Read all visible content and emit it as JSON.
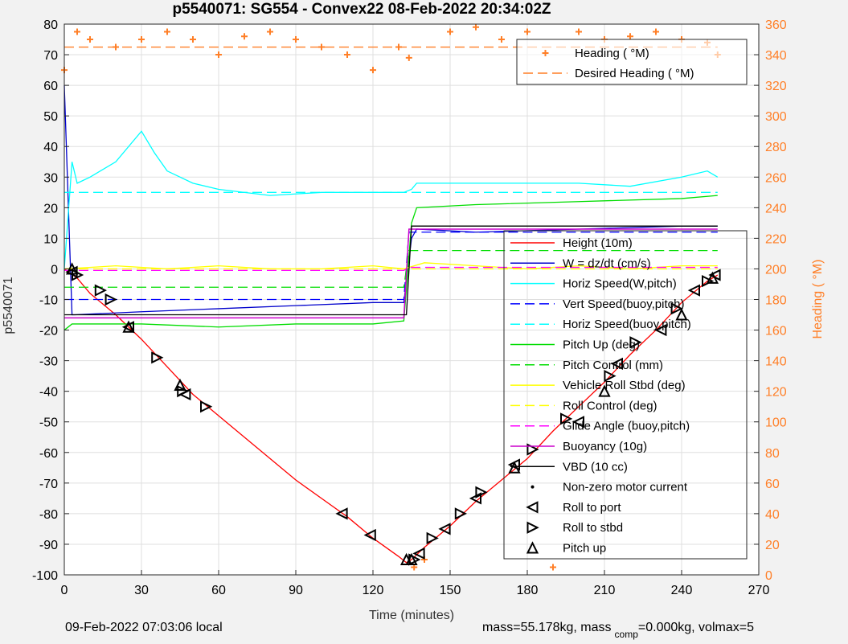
{
  "chart_data": {
    "type": "line",
    "title": "p5540071: SG554 - Convex22 08-Feb-2022 20:34:02Z",
    "xlabel": "Time (minutes)",
    "ylabel": "p5540071",
    "y2label": "Heading (  °M)",
    "xlim": [
      0,
      270
    ],
    "ylim": [
      -100,
      80
    ],
    "y2lim": [
      0,
      360
    ],
    "xticks": [
      0,
      30,
      60,
      90,
      120,
      150,
      180,
      210,
      240,
      270
    ],
    "yticks": [
      -100,
      -90,
      -80,
      -70,
      -60,
      -50,
      -40,
      -30,
      -20,
      -10,
      0,
      10,
      20,
      30,
      40,
      50,
      60,
      70,
      80
    ],
    "y2ticks": [
      0,
      20,
      40,
      60,
      80,
      100,
      120,
      140,
      160,
      180,
      200,
      220,
      240,
      260,
      280,
      300,
      320,
      340,
      360
    ],
    "grid": true,
    "legend_heading": {
      "placement": "top-right",
      "entries": [
        {
          "label": "Heading (  °M)",
          "color": "#ff7f27",
          "style": "plus"
        },
        {
          "label": "Desired Heading (    °M)",
          "color": "#ff7f27",
          "style": "dash"
        }
      ]
    },
    "legend_main": {
      "placement": "right",
      "entries": [
        {
          "label": "Height (10m)",
          "color": "#ff0000",
          "style": "solid"
        },
        {
          "label": "W = dz/dt (cm/s)",
          "color": "#0000cc",
          "style": "solid"
        },
        {
          "label": "Horiz Speed(W,pitch)",
          "color": "#00ffff",
          "style": "solid"
        },
        {
          "label": "Vert Speed(buoy,pitch)",
          "color": "#0000ff",
          "style": "dash"
        },
        {
          "label": "Horiz Speed(buoy,pitch)",
          "color": "#00ffff",
          "style": "dash"
        },
        {
          "label": "Pitch Up (deg)",
          "color": "#00dd00",
          "style": "solid"
        },
        {
          "label": "Pitch Control (mm)",
          "color": "#00dd00",
          "style": "dash"
        },
        {
          "label": "Vehicle Roll Stbd (deg)",
          "color": "#ffff00",
          "style": "solid"
        },
        {
          "label": "Roll Control (deg)",
          "color": "#ffff00",
          "style": "dash"
        },
        {
          "label": "Glide Angle (buoy,pitch)",
          "color": "#ff00ff",
          "style": "dash"
        },
        {
          "label": "Buoyancy (10g)",
          "color": "#cc00cc",
          "style": "solid"
        },
        {
          "label": "VBD (10 cc)",
          "color": "#000000",
          "style": "solid"
        },
        {
          "label": "Non-zero motor current",
          "color": "#000000",
          "style": "dot"
        },
        {
          "label": "Roll to port",
          "color": "#000000",
          "style": "tri-left"
        },
        {
          "label": "Roll to stbd",
          "color": "#000000",
          "style": "tri-right"
        },
        {
          "label": "Pitch up",
          "color": "#000000",
          "style": "tri-up"
        }
      ]
    },
    "series": [
      {
        "key": "height",
        "x": [
          0,
          5,
          10,
          20,
          30,
          40,
          50,
          60,
          70,
          80,
          90,
          100,
          110,
          120,
          130,
          133,
          135,
          140,
          150,
          160,
          170,
          180,
          190,
          200,
          210,
          220,
          230,
          240,
          250,
          254
        ],
        "y": [
          0,
          -3,
          -8,
          -15,
          -23,
          -32,
          -41,
          -48,
          -55,
          -62,
          -69,
          -75,
          -81,
          -88,
          -94,
          -96,
          -95,
          -91,
          -84,
          -76,
          -69,
          -62,
          -53,
          -45,
          -37,
          -28,
          -20,
          -11,
          -4,
          -2
        ]
      },
      {
        "key": "w",
        "x": [
          0,
          3,
          4,
          30,
          60,
          90,
          120,
          132,
          135,
          137,
          160,
          200,
          240,
          254
        ],
        "y": [
          60,
          -15,
          -15,
          -14,
          -13,
          -12,
          -11,
          -11,
          10,
          13,
          12,
          13,
          14,
          14
        ]
      },
      {
        "key": "horiz_w",
        "x": [
          0,
          3,
          5,
          10,
          20,
          30,
          35,
          40,
          50,
          60,
          80,
          100,
          120,
          132,
          135,
          137,
          160,
          200,
          220,
          240,
          250,
          254
        ],
        "y": [
          0,
          35,
          28,
          30,
          35,
          45,
          38,
          32,
          28,
          26,
          24,
          25,
          25,
          25,
          26,
          28,
          28,
          28,
          27,
          30,
          32,
          30
        ]
      },
      {
        "key": "vert_buoy",
        "x": [
          0,
          132,
          134,
          254
        ],
        "y": [
          -10,
          -10,
          12,
          12
        ]
      },
      {
        "key": "horiz_buoy",
        "x": [
          0,
          132,
          134,
          254
        ],
        "y": [
          25,
          25,
          25,
          25
        ]
      },
      {
        "key": "pitch_up",
        "x": [
          0,
          3,
          5,
          30,
          60,
          90,
          120,
          132,
          135,
          137,
          160,
          200,
          240,
          254
        ],
        "y": [
          -20,
          -18,
          -18,
          -18,
          -19,
          -18,
          -18,
          -17,
          15,
          20,
          21,
          22,
          23,
          24
        ]
      },
      {
        "key": "pitch_ctrl",
        "x": [
          0,
          132,
          134,
          254
        ],
        "y": [
          -6,
          -6,
          6,
          6
        ]
      },
      {
        "key": "roll",
        "x": [
          0,
          20,
          40,
          60,
          80,
          100,
          120,
          132,
          140,
          160,
          180,
          200,
          220,
          240,
          254
        ],
        "y": [
          0,
          1,
          0,
          1,
          0,
          0,
          1,
          0,
          2,
          1,
          0,
          1,
          0,
          1,
          1
        ]
      },
      {
        "key": "roll_ctrl",
        "x": [
          0,
          254
        ],
        "y": [
          0,
          0
        ]
      },
      {
        "key": "glide",
        "x": [
          0,
          132,
          134,
          254
        ],
        "y": [
          -0.5,
          -0.5,
          0.5,
          0.5
        ]
      },
      {
        "key": "buoy",
        "x": [
          0,
          3,
          132,
          134,
          254
        ],
        "y": [
          -16,
          -16,
          -16,
          13,
          13
        ]
      },
      {
        "key": "vbd",
        "x": [
          0,
          3,
          133,
          135,
          254
        ],
        "y": [
          -15,
          -15,
          -15,
          14,
          14
        ]
      },
      {
        "key": "heading",
        "x": [
          0,
          5,
          10,
          20,
          30,
          40,
          50,
          60,
          70,
          80,
          90,
          100,
          110,
          120,
          130,
          134,
          136,
          140,
          150,
          160,
          170,
          180,
          190,
          200,
          210,
          220,
          230,
          240,
          250,
          254
        ],
        "y": [
          330,
          355,
          350,
          345,
          350,
          355,
          350,
          340,
          352,
          355,
          350,
          345,
          340,
          330,
          345,
          338,
          5,
          10,
          355,
          358,
          350,
          355,
          5,
          355,
          350,
          352,
          355,
          350,
          348,
          340
        ]
      },
      {
        "key": "heading_desired",
        "x": [
          0,
          254
        ],
        "y": [
          345,
          345
        ]
      },
      {
        "key": "roll_port",
        "x": [
          3,
          25,
          47,
          108,
          119,
          138,
          148,
          160,
          175,
          200,
          215,
          232,
          245,
          253
        ],
        "y": [
          -1,
          -19,
          -41,
          -80,
          -87,
          -93,
          -85,
          -75,
          -64,
          -50,
          -31,
          -20,
          -7,
          -2
        ]
      },
      {
        "key": "roll_stbd",
        "x": [
          5,
          14,
          18,
          36,
          46,
          55,
          136,
          143,
          154,
          162,
          182,
          195,
          212,
          222,
          238,
          250
        ],
        "y": [
          -2,
          -7,
          -10,
          -29,
          -40,
          -45,
          -95,
          -88,
          -80,
          -73,
          -59,
          -49,
          -35,
          -24,
          -13,
          -4
        ]
      },
      {
        "key": "pitch_up_markers",
        "x": [
          3,
          25,
          45,
          133,
          135,
          175,
          210,
          240,
          252
        ],
        "y": [
          0,
          -19,
          -38,
          -95,
          -95,
          -65,
          -40,
          -15,
          -3
        ]
      }
    ]
  },
  "footer": {
    "local_time": "09-Feb-2022 07:03:06 local",
    "mass_text": "mass=55.178kg, mass",
    "mass_sub": "comp",
    "mass_rest": "=0.000kg, volmax=5"
  }
}
